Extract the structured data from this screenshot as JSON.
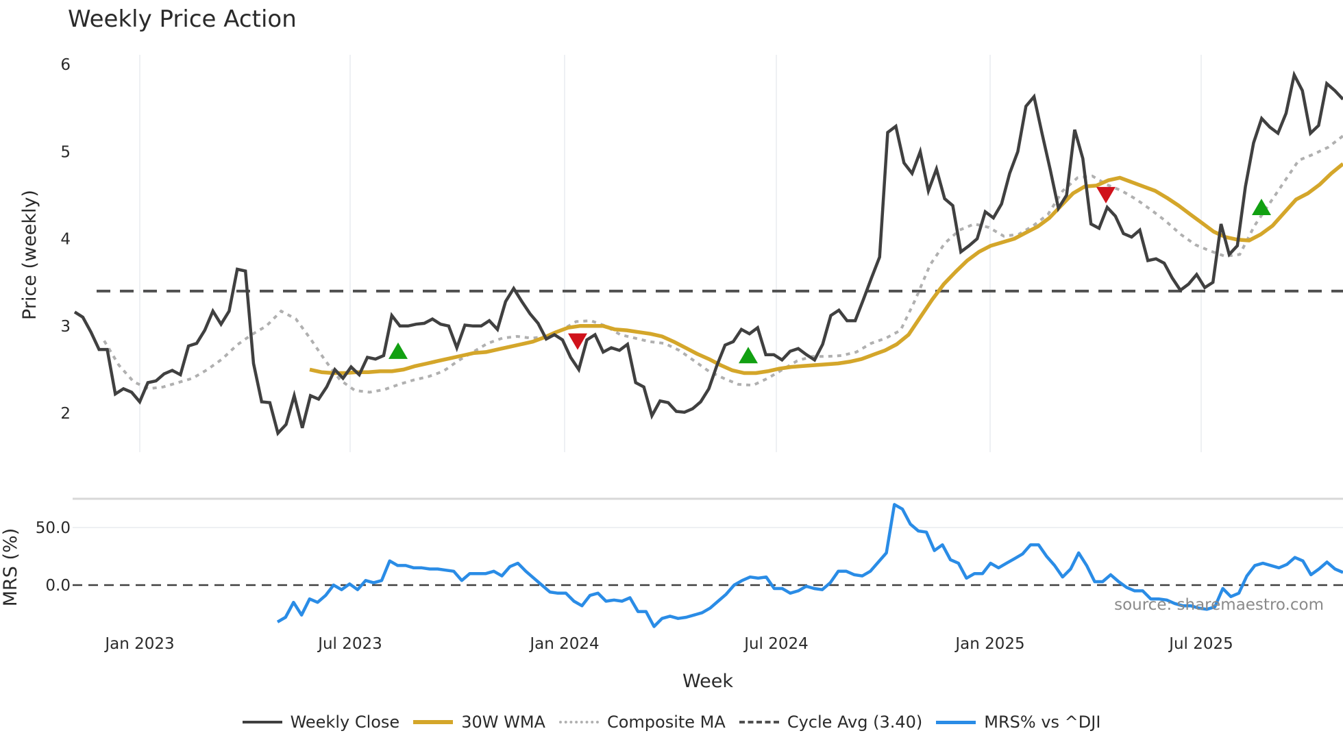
{
  "title": "Weekly Price Action",
  "price_panel": {
    "ylabel": "Price (weekly)",
    "yticks": [
      "2",
      "3",
      "4",
      "5",
      "6"
    ],
    "cycle_avg": 3.4
  },
  "mrs_panel": {
    "ylabel": "MRS (%)",
    "yticks": [
      "0.0",
      "50.0"
    ]
  },
  "xaxis": {
    "label": "Week",
    "ticks": [
      "Jan 2023",
      "Jul 2023",
      "Jan 2024",
      "Jul 2024",
      "Jan 2025",
      "Jul 2025"
    ]
  },
  "source": "source: sharemaestro.com",
  "legend": {
    "items": [
      {
        "label": "Weekly Close",
        "color": "#404040",
        "style": "solid"
      },
      {
        "label": "30W WMA",
        "color": "#d4a62a",
        "style": "solid"
      },
      {
        "label": "Composite MA",
        "color": "#b0b0b0",
        "style": "dotted"
      },
      {
        "label": "Cycle Avg (3.40)",
        "color": "#505050",
        "style": "dashed"
      },
      {
        "label": "MRS% vs ^DJI",
        "color": "#2a8ce6",
        "style": "solid"
      }
    ]
  },
  "colors": {
    "close": "#404040",
    "wma": "#d4a62a",
    "composite": "#b0b0b0",
    "cycle": "#505050",
    "mrs": "#2a8ce6",
    "buy": "#12a012",
    "sell": "#d0121b",
    "grid": "#eef0f3"
  },
  "chart_data": [
    {
      "type": "line",
      "title": "Weekly Price Action",
      "xlabel": "Week",
      "ylabel": "Price (weekly)",
      "ylim": [
        1.5,
        6.1
      ],
      "x_ticks": [
        "Jan 2023",
        "Jul 2023",
        "Jan 2024",
        "Jul 2024",
        "Jan 2025",
        "Jul 2025"
      ],
      "grid": true,
      "legend_position": "bottom",
      "series": [
        {
          "name": "Weekly Close",
          "values": [
            3.16,
            3.1,
            2.93,
            2.73,
            2.73,
            2.22,
            2.28,
            2.24,
            2.13,
            2.35,
            2.37,
            2.45,
            2.49,
            2.44,
            2.77,
            2.8,
            2.95,
            3.17,
            3.02,
            3.17,
            3.65,
            3.63,
            2.57,
            2.13,
            2.12,
            1.77,
            1.87,
            2.2,
            1.83,
            2.2,
            2.16,
            2.3,
            2.5,
            2.4,
            2.53,
            2.44,
            2.64,
            2.62,
            2.66,
            3.12,
            3.0,
            3.0,
            3.02,
            3.03,
            3.08,
            3.02,
            3.0,
            2.75,
            3.01,
            3.0,
            3.0,
            3.06,
            2.96,
            3.28,
            3.43,
            3.28,
            3.14,
            3.03,
            2.85,
            2.9,
            2.84,
            2.64,
            2.5,
            2.84,
            2.9,
            2.7,
            2.75,
            2.72,
            2.79,
            2.35,
            2.3,
            1.97,
            2.14,
            2.12,
            2.02,
            2.01,
            2.05,
            2.13,
            2.28,
            2.55,
            2.78,
            2.82,
            2.96,
            2.91,
            2.98,
            2.67,
            2.67,
            2.61,
            2.71,
            2.74,
            2.67,
            2.61,
            2.79,
            3.12,
            3.18,
            3.06,
            3.06,
            3.3,
            3.55,
            3.79,
            5.22,
            5.29,
            4.87,
            4.75,
            5.0,
            4.55,
            4.8,
            4.46,
            4.38,
            3.85,
            3.92,
            4.0,
            4.31,
            4.24,
            4.4,
            4.75,
            5.0,
            5.52,
            5.63,
            5.2,
            4.79,
            4.35,
            4.5,
            5.25,
            4.92,
            4.17,
            4.12,
            4.36,
            4.26,
            4.06,
            4.02,
            4.1,
            3.75,
            3.77,
            3.72,
            3.55,
            3.41,
            3.48,
            3.59,
            3.44,
            3.5,
            4.17,
            3.82,
            3.92,
            4.6,
            5.1,
            5.38,
            5.28,
            5.21,
            5.44,
            5.88,
            5.7,
            5.21,
            5.3,
            5.78,
            5.7,
            5.6
          ]
        },
        {
          "name": "30W WMA",
          "values": [
            2.5,
            2.47,
            2.46,
            2.46,
            2.47,
            2.47,
            2.48,
            2.48,
            2.5,
            2.54,
            2.57,
            2.6,
            2.63,
            2.66,
            2.69,
            2.7,
            2.73,
            2.76,
            2.79,
            2.82,
            2.87,
            2.93,
            2.98,
            3.0,
            3.0,
            3.0,
            2.96,
            2.95,
            2.93,
            2.91,
            2.88,
            2.82,
            2.75,
            2.68,
            2.62,
            2.55,
            2.49,
            2.46,
            2.46,
            2.48,
            2.51,
            2.53,
            2.54,
            2.55,
            2.56,
            2.57,
            2.59,
            2.62,
            2.67,
            2.72,
            2.79,
            2.9,
            3.1,
            3.3,
            3.48,
            3.62,
            3.75,
            3.85,
            3.92,
            3.96,
            4.0,
            4.07,
            4.14,
            4.24,
            4.38,
            4.52,
            4.6,
            4.61,
            4.67,
            4.7,
            4.65,
            4.6,
            4.55,
            4.47,
            4.38,
            4.28,
            4.18,
            4.08,
            4.02,
            3.99,
            3.98,
            4.05,
            4.15,
            4.3,
            4.45,
            4.52,
            4.62,
            4.75,
            4.86
          ]
        },
        {
          "name": "Composite MA",
          "values": [
            2.83,
            2.55,
            2.36,
            2.28,
            2.3,
            2.35,
            2.4,
            2.5,
            2.62,
            2.78,
            2.9,
            3.0,
            3.17,
            3.08,
            2.85,
            2.6,
            2.38,
            2.26,
            2.24,
            2.27,
            2.33,
            2.38,
            2.42,
            2.48,
            2.6,
            2.7,
            2.8,
            2.86,
            2.88,
            2.86,
            2.88,
            2.95,
            3.05,
            3.06,
            3.0,
            2.9,
            2.86,
            2.82,
            2.8,
            2.72,
            2.6,
            2.48,
            2.4,
            2.33,
            2.32,
            2.4,
            2.5,
            2.6,
            2.65,
            2.65,
            2.66,
            2.7,
            2.8,
            2.86,
            2.95,
            3.3,
            3.7,
            3.95,
            4.1,
            4.17,
            4.13,
            4.03,
            4.05,
            4.15,
            4.28,
            4.55,
            4.7,
            4.72,
            4.62,
            4.55,
            4.45,
            4.33,
            4.2,
            4.05,
            3.93,
            3.86,
            3.8,
            3.82,
            4.15,
            4.4,
            4.65,
            4.9,
            4.97,
            5.05,
            5.18
          ]
        }
      ],
      "horizontal_lines": [
        {
          "name": "Cycle Avg (3.40)",
          "y": 3.4
        }
      ],
      "markers": [
        {
          "type": "buy",
          "x": "Aug 2023",
          "y": 2.7
        },
        {
          "type": "sell",
          "x": "Feb 2024",
          "y": 2.82
        },
        {
          "type": "buy",
          "x": "Jun 2024",
          "y": 2.65
        },
        {
          "type": "sell",
          "x": "Apr 2025",
          "y": 4.5
        },
        {
          "type": "buy",
          "x": "Aug 2025",
          "y": 4.35
        }
      ]
    },
    {
      "type": "line",
      "xlabel": "Week",
      "ylabel": "MRS (%)",
      "ylim": [
        -35,
        75
      ],
      "y_ticks": [
        "0.0",
        "50.0"
      ],
      "grid": true,
      "series": [
        {
          "name": "MRS% vs ^DJI",
          "values": [
            -32,
            -28,
            -15,
            -26,
            -12,
            -15,
            -9,
            0,
            -4,
            1,
            -4,
            4,
            2,
            4,
            21,
            17,
            17,
            15,
            15,
            14,
            14,
            13,
            12,
            4,
            10,
            10,
            10,
            12,
            8,
            16,
            19,
            12,
            6,
            0,
            -6,
            -7,
            -7,
            -14,
            -18,
            -9,
            -7,
            -14,
            -13,
            -14,
            -11,
            -23,
            -23,
            -36,
            -29,
            -27,
            -29,
            -28,
            -26,
            -24,
            -20,
            -14,
            -8,
            0,
            4,
            7,
            6,
            7,
            -3,
            -3,
            -7,
            -5,
            -1,
            -3,
            -4,
            2,
            12,
            12,
            9,
            8,
            12,
            20,
            28,
            70,
            66,
            53,
            47,
            46,
            30,
            35,
            22,
            19,
            6,
            10,
            10,
            19,
            15,
            19,
            23,
            27,
            35,
            35,
            25,
            17,
            7,
            14,
            28,
            17,
            3,
            3,
            9,
            3,
            -2,
            -5,
            -5,
            -12,
            -12,
            -13,
            -16,
            -18,
            -18,
            -20,
            -21,
            -19,
            -3,
            -10,
            -7,
            8,
            17,
            19,
            17,
            15,
            18,
            24,
            21,
            9,
            14,
            20,
            14,
            11
          ]
        }
      ],
      "horizontal_lines": [
        {
          "y": 0
        }
      ]
    }
  ]
}
